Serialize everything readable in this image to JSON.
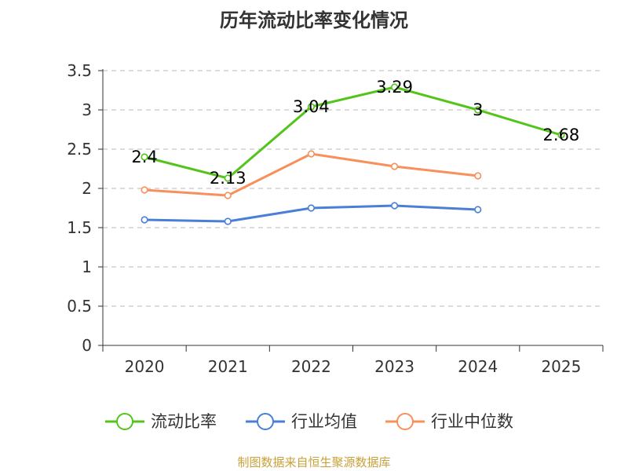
{
  "title": "历年流动比率变化情况",
  "source_label": "制图数据来自恒生聚源数据库",
  "colors": {
    "current_ratio": "#52c41a",
    "industry_mean": "#4a7fd8",
    "industry_median": "#f7905a",
    "source_text": "#c8a13a",
    "axis": "#333333",
    "grid": "#c8c8c8"
  },
  "chart_data": {
    "type": "line",
    "title": "历年流动比率变化情况",
    "categories": [
      "2020",
      "2021",
      "2022",
      "2023",
      "2024",
      "2025"
    ],
    "ylim": [
      0,
      3.5
    ],
    "yticks": [
      "0",
      "0.5",
      "1",
      "1.5",
      "2",
      "2.5",
      "3",
      "3.5"
    ],
    "series": [
      {
        "name": "流动比率",
        "color_key": "current_ratio",
        "values": [
          2.4,
          2.13,
          3.04,
          3.29,
          3.0,
          2.68
        ],
        "labels": [
          "2.4",
          "2.13",
          "3.04",
          "3.29",
          "3",
          "2.68"
        ]
      },
      {
        "name": "行业均值",
        "color_key": "industry_mean",
        "values": [
          1.6,
          1.58,
          1.75,
          1.78,
          1.73,
          null
        ]
      },
      {
        "name": "行业中位数",
        "color_key": "industry_median",
        "values": [
          1.98,
          1.91,
          2.44,
          2.28,
          2.16,
          null
        ]
      }
    ]
  }
}
